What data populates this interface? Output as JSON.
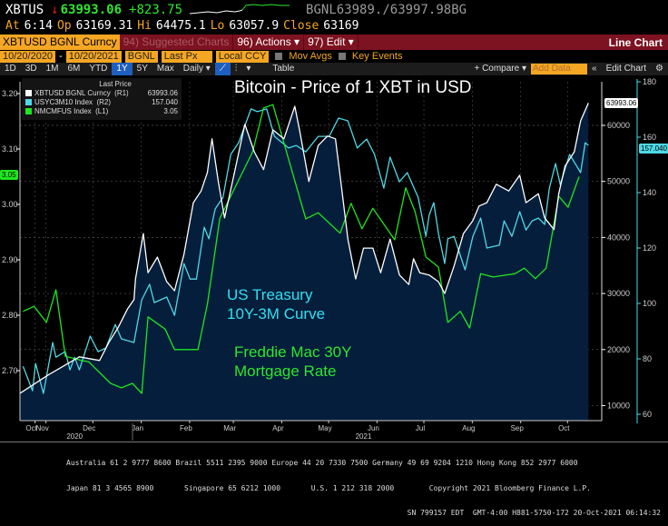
{
  "quote": {
    "ticker": "XBTUS",
    "direction_icon": "down-arrow",
    "last": "63993.06",
    "change": "+823.75",
    "bid_ask": "BGNL63989./63997.98BG",
    "at_label": "At",
    "time": "6:14",
    "open_label": "Op",
    "open": "63169.31",
    "high_label": "Hi",
    "high": "64475.1",
    "low_label": "Lo",
    "low": "63057.9",
    "close_label": "Close",
    "close": "63169"
  },
  "menu": {
    "security": "XBTUSD BGNL Curncy",
    "suggested": "94) Suggested Charts",
    "actions": "96) Actions ▾",
    "edit": "97) Edit ▾",
    "chart_type": "Line Chart"
  },
  "params": {
    "start_date": "10/20/2020",
    "dash": "-",
    "end_date": "10/20/2021",
    "source": "BGNL",
    "field": "Last Px",
    "currency": "Local CCY",
    "mov_avgs": "Mov Avgs",
    "key_events": "Key Events"
  },
  "toolbar": {
    "periods": [
      "1D",
      "3D",
      "1M",
      "6M",
      "YTD",
      "1Y",
      "5Y",
      "Max"
    ],
    "selected_period": "1Y",
    "frequency": "Daily ▾",
    "table": "Table",
    "compare": "+ Compare ▾",
    "add_data_placeholder": "Add Data",
    "edit_chart": "Edit Chart"
  },
  "legend": {
    "header": "Last Price",
    "items": [
      {
        "name": "XBTUSD BGNL Curncy  (R1)",
        "value": "63993.06",
        "color": "#ffffff"
      },
      {
        "name": "USYC3M10 Index  (R2)",
        "value": "157.040",
        "color": "#4fd8e6"
      },
      {
        "name": "NMCMFUS Index  (L1)",
        "value": "3.05",
        "color": "#1ee61e"
      }
    ]
  },
  "annotations": {
    "title": "Bitcoin - Price of 1 XBT in USD",
    "treasury_1": "US Treasury",
    "treasury_2": "10Y-3M Curve",
    "mortgage_1": "Freddie Mac 30Y",
    "mortgage_2": "Mortgage Rate"
  },
  "chart_data": {
    "type": "line",
    "title": "Bitcoin - Price of 1 XBT in USD",
    "x_unit": "days since 2020-10-20",
    "x_range": [
      0,
      365
    ],
    "x_ticks": [
      "Oct",
      "Nov",
      "Dec",
      "Jan",
      "Feb",
      "Mar",
      "Apr",
      "May",
      "Jun",
      "Jul",
      "Aug",
      "Sep",
      "Oct"
    ],
    "x_tick_days": [
      5,
      12,
      42,
      73,
      104,
      132,
      163,
      193,
      224,
      254,
      285,
      316,
      346
    ],
    "years": [
      {
        "label": "2020",
        "day": 35
      },
      {
        "label": "2021",
        "day": 220
      }
    ],
    "axes": {
      "L1": {
        "ticks": [
          "2.70",
          "2.80",
          "2.90",
          "3.00",
          "3.10",
          "3.20"
        ],
        "range": [
          2.6,
          3.23
        ]
      },
      "R1": {
        "ticks": [
          "10000",
          "20000",
          "30000",
          "40000",
          "50000",
          "60000"
        ],
        "range": [
          8000,
          68000
        ]
      },
      "R2": {
        "ticks": [
          "60",
          "80",
          "100",
          "120",
          "140",
          "160",
          "180"
        ],
        "range": [
          58,
          182
        ]
      }
    },
    "last_values": {
      "R1": "63993.06",
      "R2": "157.040",
      "L1": "3.05"
    },
    "series": [
      {
        "name": "XBTUSD BGNL Curncy",
        "axis": "R1",
        "color": "#ffffff",
        "fill": true,
        "x": [
          0,
          18,
          38,
          51,
          57,
          63,
          69,
          73,
          74,
          79,
          82,
          88,
          94,
          99,
          105,
          111,
          116,
          120,
          123,
          127,
          131,
          137,
          142,
          144,
          150,
          156,
          162,
          169,
          176,
          179,
          185,
          191,
          197,
          202,
          206,
          210,
          215,
          220,
          226,
          231,
          237,
          243,
          249,
          252,
          256,
          262,
          268,
          272,
          278,
          284,
          290,
          294,
          299,
          305,
          313,
          320,
          324,
          332,
          336,
          342,
          345,
          349,
          355,
          359,
          364
        ],
        "y": [
          12200,
          15450,
          18700,
          18050,
          21300,
          24000,
          27300,
          28900,
          32600,
          40700,
          33700,
          36500,
          32100,
          30500,
          37000,
          46200,
          48300,
          51600,
          57600,
          50000,
          43500,
          51100,
          57600,
          60200,
          55300,
          52100,
          59200,
          57600,
          63400,
          59200,
          50000,
          56400,
          58100,
          57600,
          48800,
          39700,
          32600,
          38100,
          38100,
          33700,
          39700,
          33300,
          31600,
          36200,
          33700,
          33300,
          32100,
          30000,
          34900,
          40700,
          43000,
          45600,
          46200,
          49500,
          48300,
          51100,
          46200,
          47800,
          43500,
          41400,
          47800,
          52700,
          55300,
          60800,
          63993.06
        ]
      },
      {
        "name": "USYC3M10 Index",
        "axis": "R2",
        "color": "#4fd8e6",
        "x": [
          2,
          8,
          10,
          15,
          21,
          23,
          29,
          32,
          35,
          38,
          45,
          50,
          55,
          61,
          65,
          73,
          78,
          83,
          86,
          94,
          99,
          105,
          109,
          113,
          118,
          121,
          125,
          130,
          135,
          140,
          148,
          152,
          158,
          163,
          172,
          177,
          183,
          191,
          198,
          204,
          210,
          216,
          222,
          227,
          233,
          237,
          243,
          248,
          255,
          260,
          262,
          265,
          268,
          272,
          274,
          278,
          285,
          290,
          295,
          299,
          307,
          310,
          315,
          320,
          324,
          328,
          332,
          336,
          339,
          343,
          346,
          352,
          359,
          362,
          364
        ],
        "y": [
          77.3,
          68.5,
          78.3,
          67.5,
          85.9,
          80.6,
          82.6,
          76.0,
          80.6,
          76.0,
          88.2,
          82.6,
          83.9,
          92.4,
          87.2,
          85.9,
          101.3,
          106.9,
          100.3,
          102.3,
          95.7,
          114.4,
          108.8,
          108.8,
          127.5,
          123.3,
          134.1,
          138.3,
          153.8,
          158.0,
          170.2,
          169.2,
          170.2,
          160.3,
          156.1,
          157.0,
          154.7,
          160.3,
          160.3,
          166.9,
          165.9,
          156.1,
          159.3,
          153.8,
          141.6,
          152.8,
          143.9,
          147.2,
          138.3,
          124.2,
          131.8,
          136.4,
          125.2,
          114.4,
          123.3,
          124.2,
          112.1,
          124.2,
          130.8,
          120.0,
          121.0,
          129.8,
          124.2,
          133.1,
          126.5,
          129.8,
          130.8,
          128.5,
          141.6,
          150.5,
          142.9,
          153.8,
          147.2,
          158.0,
          157.04
        ]
      },
      {
        "name": "NMCMFUS Index",
        "axis": "L1",
        "color": "#1ee61e",
        "x": [
          2,
          9,
          17,
          23,
          29,
          40,
          44,
          58,
          65,
          72,
          78,
          82,
          93,
          99,
          114,
          120,
          128,
          149,
          156,
          162,
          183,
          191,
          205,
          212,
          219,
          226,
          240,
          247,
          253,
          260,
          268,
          274,
          282,
          288,
          295,
          303,
          317,
          323,
          330,
          337,
          345,
          351,
          358
        ],
        "y": [
          2.807,
          2.816,
          2.787,
          2.846,
          2.726,
          2.718,
          2.716,
          2.677,
          2.669,
          2.677,
          2.659,
          2.797,
          2.775,
          2.738,
          2.738,
          2.82,
          2.975,
          3.095,
          3.174,
          3.18,
          2.974,
          2.985,
          2.948,
          3.002,
          2.956,
          2.993,
          2.936,
          3.03,
          2.987,
          2.905,
          2.887,
          2.787,
          2.807,
          2.777,
          2.875,
          2.869,
          2.875,
          2.885,
          2.866,
          2.885,
          3.015,
          2.995,
          3.05
        ]
      }
    ]
  },
  "footer": {
    "line1": "Australia 61 2 9777 8600 Brazil 5511 2395 9000 Europe 44 20 7330 7500 Germany 49 69 9204 1210 Hong Kong 852 2977 6000",
    "line2": "Japan 81 3 4565 8900       Singapore 65 6212 1000       U.S. 1 212 318 2000        Copyright 2021 Bloomberg Finance L.P.",
    "line3": "SN 799157 EDT  GMT-4:00 H881-5750-172 20-Oct-2021 06:14:32"
  }
}
